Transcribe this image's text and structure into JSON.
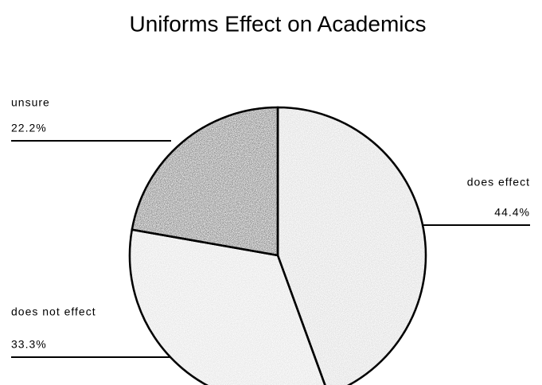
{
  "chart_data": {
    "type": "pie",
    "title": "Uniforms Effect on Academics",
    "categories": [
      "does effect",
      "does not effect",
      "unsure"
    ],
    "values": [
      44.4,
      33.3,
      22.2
    ],
    "value_labels": [
      "44.4%",
      "33.3%",
      "22.2%"
    ],
    "colors": [
      "#c4c4c4",
      "#cfcfcf",
      "#1e1e1e"
    ]
  }
}
